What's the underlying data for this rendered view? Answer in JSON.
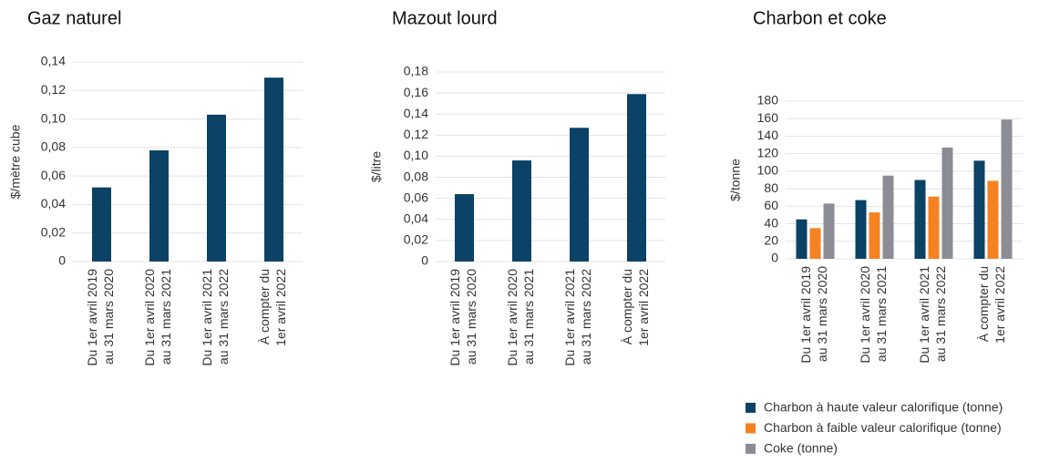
{
  "chart_data": [
    {
      "type": "bar",
      "title": "Gaz naturel",
      "y_label": "$/mètre cube",
      "color": "#0b4266",
      "grid": true,
      "categories": [
        [
          "Du 1er avril 2019",
          "au 31 mars 2020"
        ],
        [
          "Du 1er avril 2020",
          "au 31 mars 2021"
        ],
        [
          "Du 1er avril 2021",
          "au 31 mars 2022"
        ],
        [
          "À compter du",
          "1er avril 2022"
        ]
      ],
      "values": [
        0.052,
        0.078,
        0.103,
        0.129
      ],
      "ylim": [
        0,
        0.14
      ],
      "yticks": [
        0,
        {
          "value": 0.02,
          "label": "0,02"
        },
        {
          "value": 0.04,
          "label": "0,04"
        },
        {
          "value": 0.06,
          "label": "0,06"
        },
        {
          "value": 0.08,
          "label": "0,08"
        },
        {
          "value": 0.1,
          "label": "0,10"
        },
        {
          "value": 0.12,
          "label": "0,12"
        },
        {
          "value": 0.14,
          "label": "0,14"
        }
      ]
    },
    {
      "type": "bar",
      "title": "Mazout lourd",
      "y_label": "$/litre",
      "color": "#0b4266",
      "grid": true,
      "categories": [
        [
          "Du 1er avril 2019",
          "au 31 mars 2020"
        ],
        [
          "Du 1er avril 2020",
          "au 31 mars 2021"
        ],
        [
          "Du 1er avril 2021",
          "au 31 mars 2022"
        ],
        [
          "À compter du",
          "1er avril 2022"
        ]
      ],
      "values": [
        0.064,
        0.096,
        0.127,
        0.159
      ],
      "ylim": [
        0,
        0.18
      ],
      "yticks": [
        0,
        {
          "value": 0.02,
          "label": "0,02"
        },
        {
          "value": 0.04,
          "label": "0,04"
        },
        {
          "value": 0.06,
          "label": "0,06"
        },
        {
          "value": 0.08,
          "label": "0,08"
        },
        {
          "value": 0.1,
          "label": "0,10"
        },
        {
          "value": 0.12,
          "label": "0,12"
        },
        {
          "value": 0.14,
          "label": "0,14"
        },
        {
          "value": 0.16,
          "label": "0,16"
        },
        {
          "value": 0.18,
          "label": "0,18"
        }
      ]
    },
    {
      "type": "bar",
      "title": "Charbon et coke",
      "y_label": "$/tonne",
      "grid": true,
      "categories": [
        [
          "Du 1er avril 2019",
          "au 31 mars 2020"
        ],
        [
          "Du 1er avril 2020",
          "au 31 mars 2021"
        ],
        [
          "Du 1er avril 2021",
          "au 31 mars 2022"
        ],
        [
          "À compter du",
          "1er avril 2022"
        ]
      ],
      "series": [
        {
          "name": "Charbon à haute valeur calorifique (tonne)",
          "color": "#0b4266",
          "values": [
            45,
            67,
            90,
            112
          ]
        },
        {
          "name": "Charbon à faible valeur calorifique (tonne)",
          "color": "#f58220",
          "values": [
            35,
            53,
            71,
            89
          ]
        },
        {
          "name": "Coke (tonne)",
          "color": "#8c8c94",
          "values": [
            63,
            95,
            127,
            159
          ]
        }
      ],
      "ylim": [
        0,
        180
      ],
      "yticks": [
        0,
        20,
        40,
        60,
        80,
        100,
        120,
        140,
        160,
        180
      ]
    }
  ]
}
